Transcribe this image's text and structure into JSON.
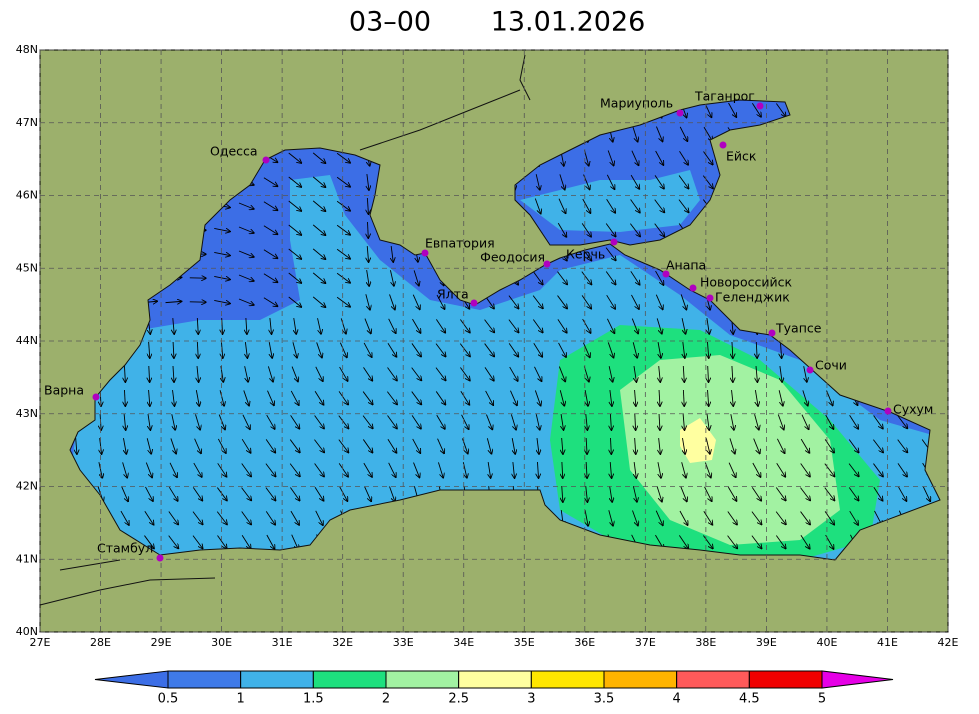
{
  "map": {
    "title": [
      "03–00",
      "13.01.2026"
    ],
    "lat_ticks": [
      {
        "value": 40,
        "label": "40N"
      },
      {
        "value": 41,
        "label": "41N"
      },
      {
        "value": 42,
        "label": "42N"
      },
      {
        "value": 43,
        "label": "43N"
      },
      {
        "value": 44,
        "label": "44N"
      },
      {
        "value": 45,
        "label": "45N"
      },
      {
        "value": 46,
        "label": "46N"
      },
      {
        "value": 47,
        "label": "47N"
      },
      {
        "value": 48,
        "label": "48N"
      }
    ],
    "lon_ticks": [
      {
        "value": 27,
        "label": "27E"
      },
      {
        "value": 28,
        "label": "28E"
      },
      {
        "value": 29,
        "label": "29E"
      },
      {
        "value": 30,
        "label": "30E"
      },
      {
        "value": 31,
        "label": "31E"
      },
      {
        "value": 32,
        "label": "32E"
      },
      {
        "value": 33,
        "label": "33E"
      },
      {
        "value": 34,
        "label": "34E"
      },
      {
        "value": 35,
        "label": "35E"
      },
      {
        "value": 36,
        "label": "36E"
      },
      {
        "value": 37,
        "label": "37E"
      },
      {
        "value": 38,
        "label": "38E"
      },
      {
        "value": 39,
        "label": "39E"
      },
      {
        "value": 40,
        "label": "40E"
      },
      {
        "value": 41,
        "label": "41E"
      },
      {
        "value": 42,
        "label": "42E"
      }
    ],
    "cities": [
      "Одесса",
      "Евпатория",
      "Феодосия",
      "Керчь",
      "Мариуполь",
      "Таганрог",
      "Ейск",
      "Анапа",
      "Новороссийск",
      "Геленджик",
      "Ялта",
      "Туапсе",
      "Сочи",
      "Сухум",
      "Варна",
      "Стамбул"
    ],
    "colorbar": {
      "ticks": [
        0.5,
        1,
        1.5,
        2,
        2.5,
        3,
        3.5,
        4,
        4.5,
        5
      ],
      "colors": [
        "#3c6ee6",
        "#3f7ae8",
        "#40b2e8",
        "#1ee07e",
        "#a2f2a2",
        "#ffffa0",
        "#ffe600",
        "#ffb400",
        "#ff5a5a",
        "#f00000",
        "#e600e6"
      ]
    }
  }
}
